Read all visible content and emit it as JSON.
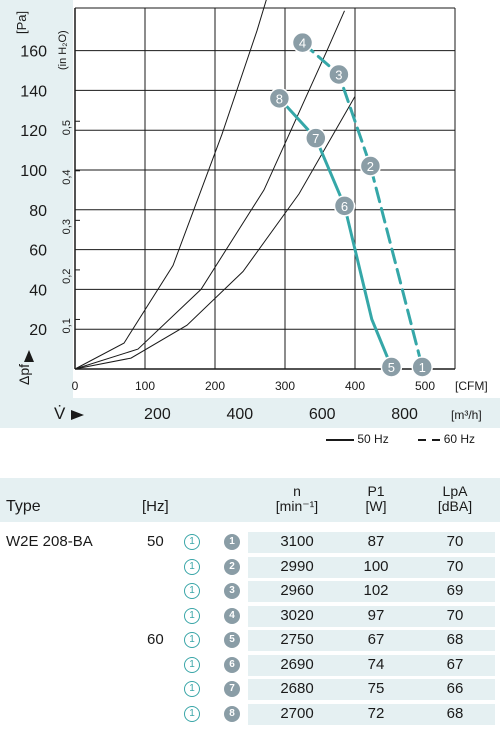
{
  "chart_data": {
    "type": "line",
    "y_unit_label": "[Pa]",
    "y_label": "Δpf",
    "y_ticks": [
      20,
      40,
      60,
      80,
      100,
      120,
      140,
      160
    ],
    "ylim": [
      0,
      170
    ],
    "y2_label": "(in H₂O)",
    "y2_ticks": [
      "0,1",
      "0,2",
      "0,3",
      "0,4",
      "0,5"
    ],
    "y2_values": [
      0.1,
      0.2,
      0.3,
      0.4,
      0.5
    ],
    "x_ticks": [
      0,
      100,
      200,
      300,
      400,
      500
    ],
    "xlim": [
      0,
      560
    ],
    "x_unit_label": "[CFM]",
    "x2_label": "V̇",
    "x2_ticks": [
      "200",
      "400",
      "600",
      "800"
    ],
    "x2_values": [
      200,
      400,
      600,
      800
    ],
    "x2_unit_label": "[m³/h]",
    "system_curves": [
      {
        "x": [
          0,
          80,
          160,
          240,
          320,
          400
        ],
        "y": [
          0,
          5.5,
          22,
          49,
          88,
          137
        ]
      },
      {
        "x": [
          0,
          90,
          180,
          270,
          360,
          385
        ],
        "y": [
          0,
          10,
          40,
          90,
          160,
          180
        ]
      },
      {
        "x": [
          0,
          70,
          140,
          210,
          260,
          290
        ],
        "y": [
          0,
          13,
          52,
          118,
          170,
          205
        ]
      }
    ],
    "series": [
      {
        "name": "50 Hz",
        "style": "solid",
        "points": [
          {
            "id": "8",
            "x": 292,
            "y": 136
          },
          {
            "id": "7",
            "x": 344,
            "y": 116
          },
          {
            "id": "6",
            "x": 385,
            "y": 82
          },
          {
            "id": "5",
            "x": 424,
            "y": 25
          },
          {
            "id": "5",
            "x": 452,
            "y": 1
          }
        ]
      },
      {
        "name": "60 Hz",
        "style": "dashed",
        "points": [
          {
            "id": "4",
            "x": 325,
            "y": 164
          },
          {
            "id": "3",
            "x": 377,
            "y": 148
          },
          {
            "id": "2",
            "x": 422,
            "y": 102
          },
          {
            "id": "1",
            "x": 469,
            "y": 38
          },
          {
            "id": "1",
            "x": 496,
            "y": 1
          }
        ]
      }
    ],
    "markers": [
      {
        "id": "1",
        "x": 496,
        "y": 1
      },
      {
        "id": "2",
        "x": 422,
        "y": 102
      },
      {
        "id": "3",
        "x": 377,
        "y": 148
      },
      {
        "id": "4",
        "x": 325,
        "y": 164
      },
      {
        "id": "5",
        "x": 452,
        "y": 1
      },
      {
        "id": "6",
        "x": 385,
        "y": 82
      },
      {
        "id": "7",
        "x": 344,
        "y": 116
      },
      {
        "id": "8",
        "x": 292,
        "y": 136
      }
    ],
    "colors": {
      "curve": "#35a7a8",
      "marker": "#8a9da6",
      "band": "#e5f0f2",
      "grid": "#1a1a1a"
    }
  },
  "legend": {
    "solid_label": "50 Hz",
    "dashed_label": "60 Hz"
  },
  "table": {
    "headers": {
      "type": "Type",
      "hz": "[Hz]",
      "n": "n",
      "n_unit": "[min⁻¹]",
      "p1": "P1",
      "p1_unit": "[W]",
      "lpa": "LpA",
      "lpa_unit": "[dBA]"
    },
    "rows": [
      {
        "type": "W2E 208-BA",
        "hz": "50",
        "c1": "1",
        "c2": "1",
        "n": "3100",
        "p1": "87",
        "lpa": "70"
      },
      {
        "type": "",
        "hz": "",
        "c1": "1",
        "c2": "2",
        "n": "2990",
        "p1": "100",
        "lpa": "70"
      },
      {
        "type": "",
        "hz": "",
        "c1": "1",
        "c2": "3",
        "n": "2960",
        "p1": "102",
        "lpa": "69"
      },
      {
        "type": "",
        "hz": "",
        "c1": "1",
        "c2": "4",
        "n": "3020",
        "p1": "97",
        "lpa": "70"
      },
      {
        "type": "",
        "hz": "60",
        "c1": "1",
        "c2": "5",
        "n": "2750",
        "p1": "67",
        "lpa": "68"
      },
      {
        "type": "",
        "hz": "",
        "c1": "1",
        "c2": "6",
        "n": "2690",
        "p1": "74",
        "lpa": "67"
      },
      {
        "type": "",
        "hz": "",
        "c1": "1",
        "c2": "7",
        "n": "2680",
        "p1": "75",
        "lpa": "66"
      },
      {
        "type": "",
        "hz": "",
        "c1": "1",
        "c2": "8",
        "n": "2700",
        "p1": "72",
        "lpa": "68"
      }
    ]
  }
}
